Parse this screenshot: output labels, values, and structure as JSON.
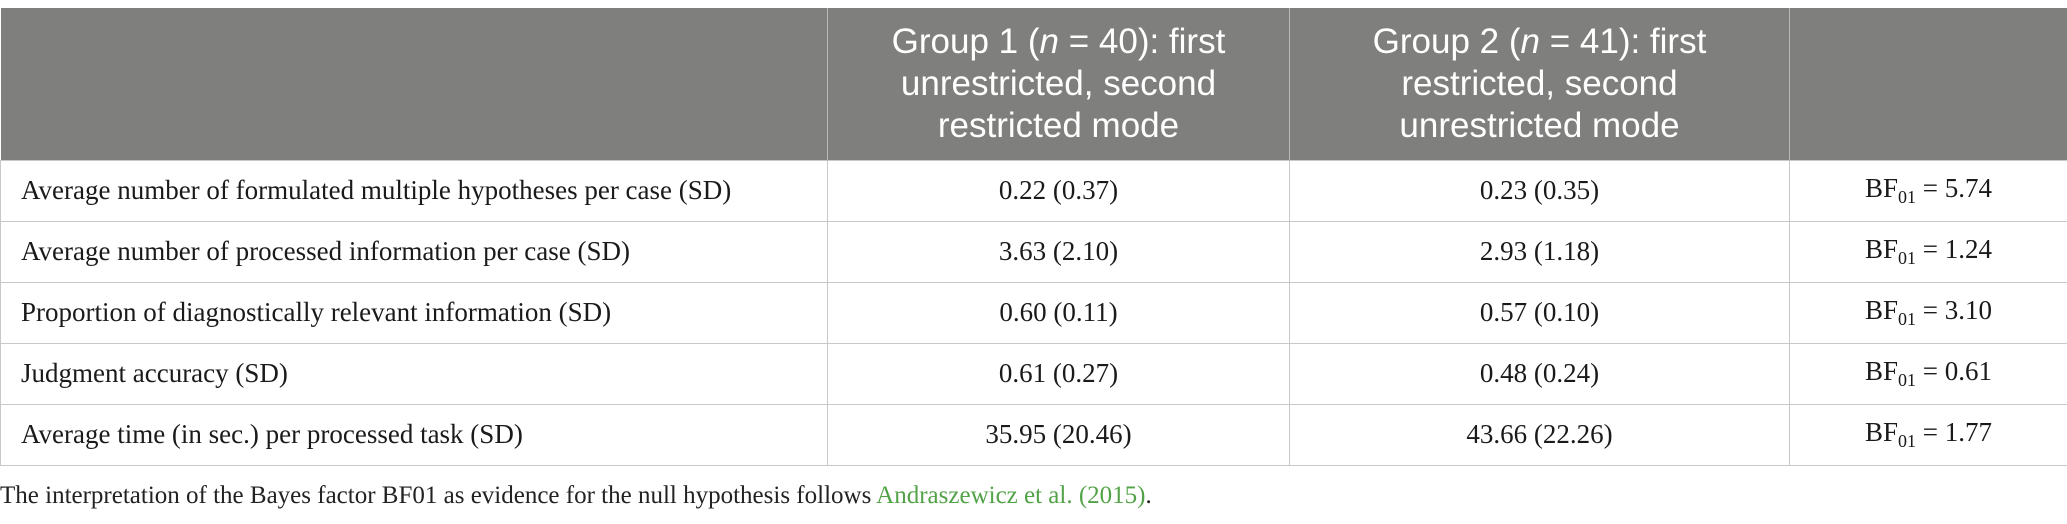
{
  "table": {
    "headers": [
      "",
      {
        "line1_pre": "Group 1 (",
        "n": "n",
        "line1_post": " = 40): first",
        "line2": "unrestricted, second",
        "line3": "restricted mode"
      },
      {
        "line1_pre": "Group 2 (",
        "n": "n",
        "line1_post": " = 41): first",
        "line2": "restricted, second",
        "line3": "unrestricted mode"
      },
      ""
    ],
    "rows": [
      {
        "label": "Average number of formulated multiple hypotheses per case (SD)",
        "g1": "0.22 (0.37)",
        "g2": "0.23 (0.35)",
        "bf_pre": "BF",
        "bf_sub": "01",
        "bf_val": " = 5.74"
      },
      {
        "label": "Average number of processed information per case (SD)",
        "g1": "3.63 (2.10)",
        "g2": "2.93 (1.18)",
        "bf_pre": "BF",
        "bf_sub": "01",
        "bf_val": " = 1.24"
      },
      {
        "label": "Proportion of diagnostically relevant information (SD)",
        "g1": "0.60 (0.11)",
        "g2": "0.57 (0.10)",
        "bf_pre": "BF",
        "bf_sub": "01",
        "bf_val": " = 3.10"
      },
      {
        "label": "Judgment accuracy (SD)",
        "g1": "0.61 (0.27)",
        "g2": "0.48 (0.24)",
        "bf_pre": "BF",
        "bf_sub": "01",
        "bf_val": " = 0.61"
      },
      {
        "label": "Average time (in sec.) per processed task (SD)",
        "g1": "35.95 (20.46)",
        "g2": "43.66 (22.26)",
        "bf_pre": "BF",
        "bf_sub": "01",
        "bf_val": " = 1.77"
      }
    ]
  },
  "caption": {
    "text": "The interpretation of the Bayes factor BF01 as evidence for the null hypothesis follows ",
    "link": "Andraszewicz et al. (2015)",
    "end": "."
  },
  "colors": {
    "header_bg": "#7f807e",
    "link": "#52a347"
  }
}
